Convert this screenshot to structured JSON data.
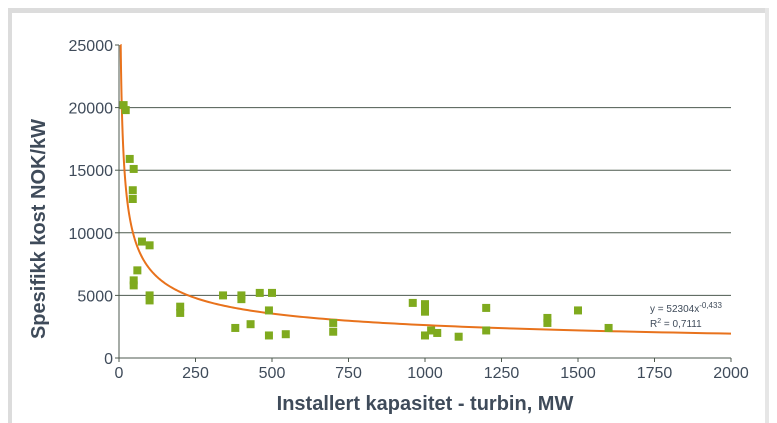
{
  "chart_data": {
    "type": "scatter",
    "title": "",
    "xlabel": "Installert kapasitet - turbin, MW",
    "ylabel": "Spesifikk kost NOK/kW",
    "xlim": [
      0,
      2000
    ],
    "ylim": [
      0,
      25000
    ],
    "x_ticks": [
      "0",
      "250",
      "500",
      "750",
      "1000",
      "1250",
      "1500",
      "1750",
      "2000"
    ],
    "y_ticks": [
      "0",
      "5000",
      "10000",
      "15000",
      "20000",
      "25000"
    ],
    "grid": "horizontal",
    "colors": {
      "points": "#7faa1e",
      "trend": "#e8721c",
      "grid": "#4d5a4f",
      "text": "#3f4b5a"
    },
    "points": [
      {
        "x": 15,
        "y": 20200
      },
      {
        "x": 22,
        "y": 19800
      },
      {
        "x": 35,
        "y": 15900
      },
      {
        "x": 48,
        "y": 15100
      },
      {
        "x": 45,
        "y": 13400
      },
      {
        "x": 45,
        "y": 12700
      },
      {
        "x": 75,
        "y": 9300
      },
      {
        "x": 100,
        "y": 9000
      },
      {
        "x": 60,
        "y": 7000
      },
      {
        "x": 48,
        "y": 6200
      },
      {
        "x": 48,
        "y": 5800
      },
      {
        "x": 100,
        "y": 5000
      },
      {
        "x": 100,
        "y": 4600
      },
      {
        "x": 200,
        "y": 4100
      },
      {
        "x": 200,
        "y": 3600
      },
      {
        "x": 340,
        "y": 5000
      },
      {
        "x": 400,
        "y": 5000
      },
      {
        "x": 400,
        "y": 4700
      },
      {
        "x": 460,
        "y": 5200
      },
      {
        "x": 500,
        "y": 5200
      },
      {
        "x": 490,
        "y": 3800
      },
      {
        "x": 380,
        "y": 2400
      },
      {
        "x": 430,
        "y": 2700
      },
      {
        "x": 490,
        "y": 1800
      },
      {
        "x": 545,
        "y": 1900
      },
      {
        "x": 700,
        "y": 2800
      },
      {
        "x": 700,
        "y": 2100
      },
      {
        "x": 960,
        "y": 4400
      },
      {
        "x": 1000,
        "y": 4300
      },
      {
        "x": 1000,
        "y": 3700
      },
      {
        "x": 1000,
        "y": 1800
      },
      {
        "x": 1020,
        "y": 2200
      },
      {
        "x": 1040,
        "y": 2000
      },
      {
        "x": 1110,
        "y": 1700
      },
      {
        "x": 1200,
        "y": 4000
      },
      {
        "x": 1200,
        "y": 2200
      },
      {
        "x": 1400,
        "y": 3200
      },
      {
        "x": 1400,
        "y": 2800
      },
      {
        "x": 1500,
        "y": 3800
      },
      {
        "x": 1600,
        "y": 2400
      }
    ],
    "trendline": {
      "type": "power",
      "a": 52304,
      "b": -0.433,
      "equation_text": "y = 52304x",
      "exponent_text": "-0,433",
      "r2_label": "R",
      "r2_sup": "2",
      "r2_value": " = 0,7111"
    }
  }
}
